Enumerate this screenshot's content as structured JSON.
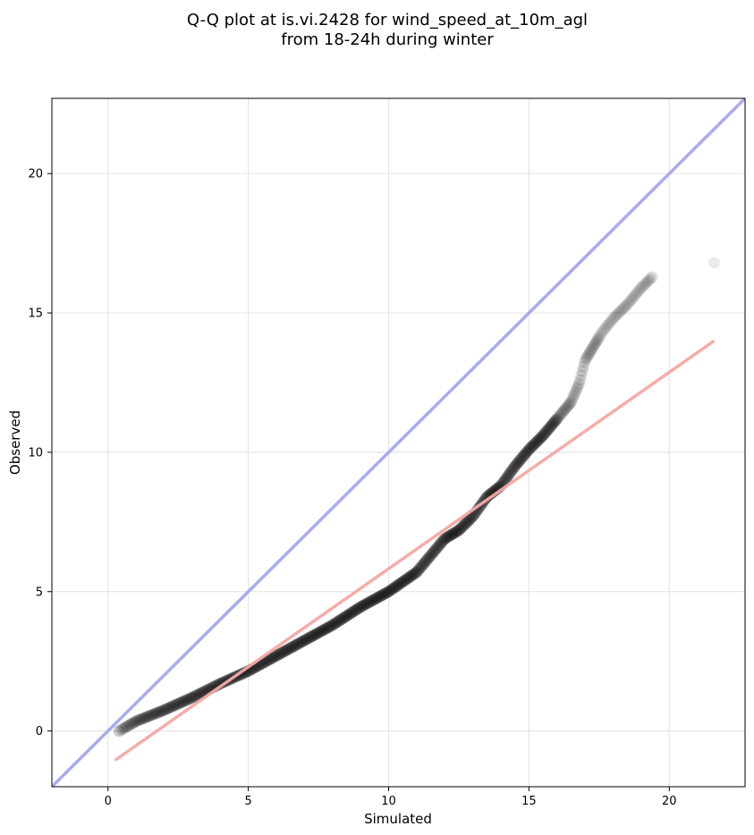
{
  "chart_data": {
    "type": "scatter",
    "title_lines": [
      "Q-Q plot at is.vi.2428 for wind_speed_at_10m_agl",
      "from 18-24h during winter"
    ],
    "xlabel": "Simulated",
    "ylabel": "Observed",
    "xlim": [
      -2,
      22.7
    ],
    "ylim": [
      -2,
      22.7
    ],
    "xticks": [
      0,
      5,
      10,
      15,
      20
    ],
    "yticks": [
      0,
      5,
      10,
      15,
      20
    ],
    "grid": true,
    "colors": {
      "identity_line": "#aaaaf0",
      "fit_line": "#f5a8a8",
      "points": "#000000"
    },
    "identity_line": {
      "x": [
        -2,
        22.7
      ],
      "y": [
        -2,
        22.7
      ]
    },
    "fit_line": {
      "x": [
        0.25,
        21.6
      ],
      "y": [
        -1.05,
        14.0
      ]
    },
    "quantile_curve": [
      [
        0.4,
        0.0
      ],
      [
        1.0,
        0.35
      ],
      [
        2.0,
        0.75
      ],
      [
        3.0,
        1.2
      ],
      [
        4.0,
        1.7
      ],
      [
        5.0,
        2.15
      ],
      [
        6.0,
        2.7
      ],
      [
        7.0,
        3.25
      ],
      [
        8.0,
        3.8
      ],
      [
        9.0,
        4.45
      ],
      [
        10.0,
        5.0
      ],
      [
        10.5,
        5.35
      ],
      [
        11.0,
        5.7
      ],
      [
        11.5,
        6.3
      ],
      [
        12.0,
        6.9
      ],
      [
        12.5,
        7.2
      ],
      [
        13.0,
        7.7
      ],
      [
        13.5,
        8.4
      ],
      [
        14.0,
        8.8
      ],
      [
        14.5,
        9.5
      ],
      [
        15.0,
        10.1
      ],
      [
        15.5,
        10.6
      ],
      [
        16.0,
        11.2
      ],
      [
        16.5,
        11.8
      ],
      [
        16.8,
        12.5
      ],
      [
        17.0,
        13.3
      ],
      [
        17.3,
        13.8
      ],
      [
        17.6,
        14.3
      ],
      [
        18.0,
        14.8
      ],
      [
        18.5,
        15.3
      ],
      [
        19.0,
        15.9
      ],
      [
        19.4,
        16.3
      ],
      [
        21.6,
        16.8
      ]
    ],
    "n_points": 420
  }
}
